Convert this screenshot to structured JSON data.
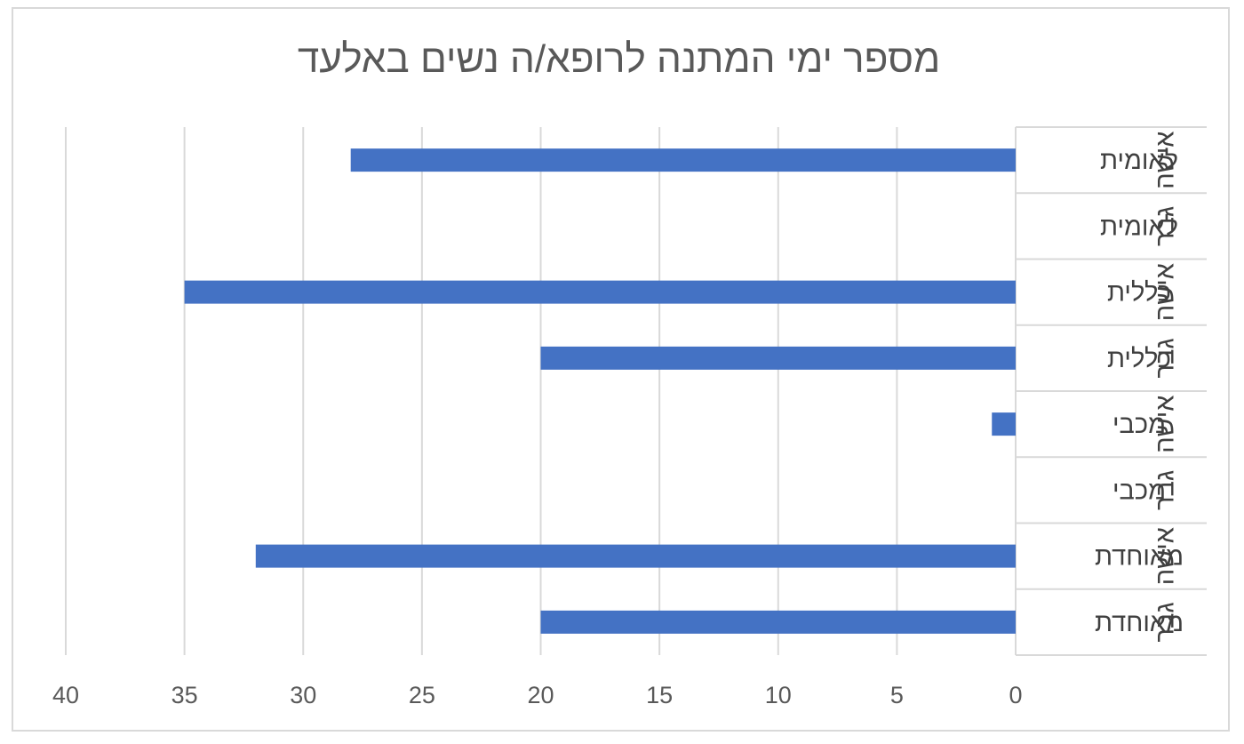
{
  "chart_data": {
    "type": "bar",
    "orientation": "horizontal",
    "x_axis_reversed": true,
    "title": "מספר ימי המתנה לרופא/ה נשים באלעד",
    "categories": [
      {
        "group": "אישה",
        "label": "לאומית"
      },
      {
        "group": "גבר",
        "label": "לאומית"
      },
      {
        "group": "אישה",
        "label": "כללית"
      },
      {
        "group": "גבר",
        "label": "כללית"
      },
      {
        "group": "אישה",
        "label": "מכבי"
      },
      {
        "group": "גבר",
        "label": "מכבי"
      },
      {
        "group": "אישה",
        "label": "מאוחדת"
      },
      {
        "group": "גבר",
        "label": "מאוחדת"
      }
    ],
    "values": [
      28,
      0,
      35,
      20,
      1,
      0,
      32,
      20
    ],
    "xlim": [
      0,
      40
    ],
    "xticks": [
      0,
      5,
      10,
      15,
      20,
      25,
      30,
      35,
      40
    ],
    "grid": true,
    "legend": "none",
    "colors": {
      "bar": "#4472c4",
      "grid": "#d9d9d9",
      "text": "#595959",
      "frame": "#d9d9d9"
    }
  }
}
